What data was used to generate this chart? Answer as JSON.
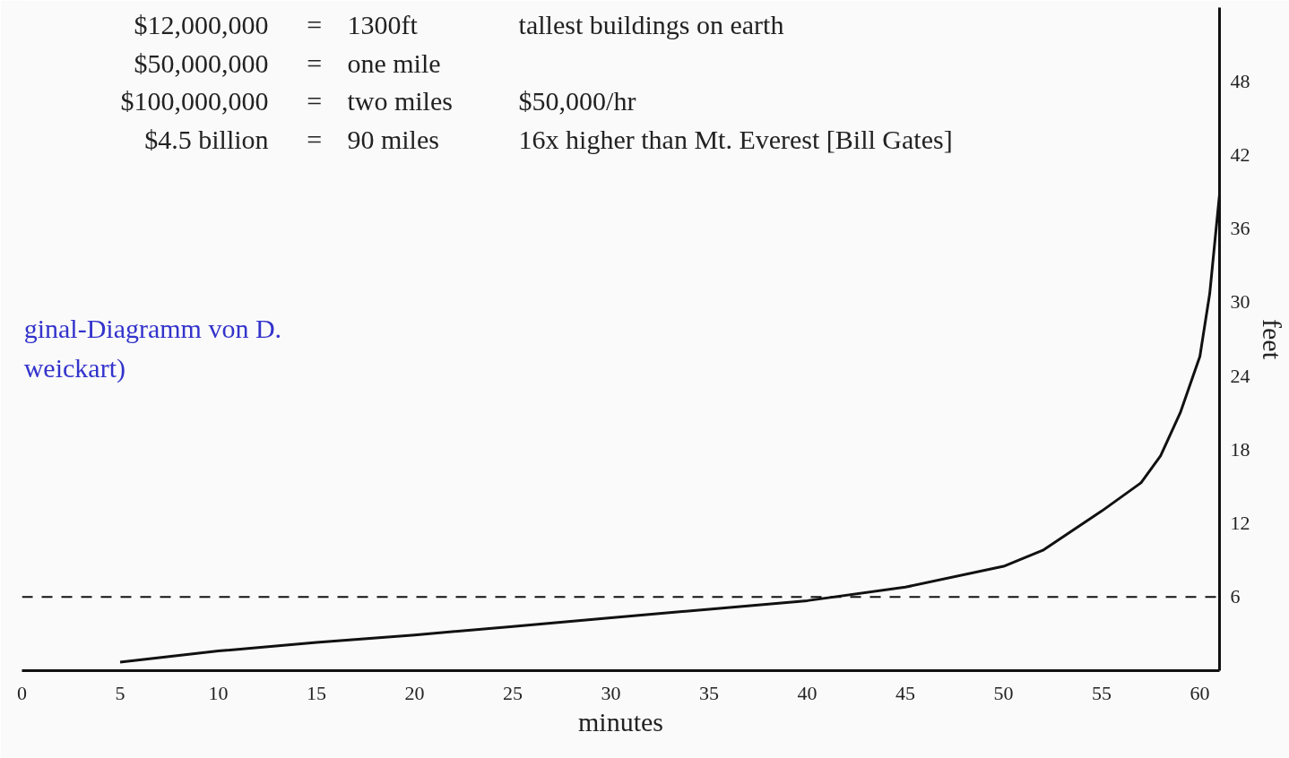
{
  "chart_data": {
    "type": "line",
    "xlabel": "minutes",
    "ylabel": "feet",
    "x": [
      5,
      10,
      15,
      20,
      25,
      30,
      35,
      40,
      45,
      50,
      52,
      55,
      57,
      58,
      59,
      60,
      60.5,
      61,
      61
    ],
    "series": [
      {
        "color": "#111111",
        "values": [
          0.7,
          1.6,
          2.3,
          2.9,
          3.6,
          4.3,
          5.0,
          5.7,
          6.8,
          8.5,
          9.8,
          13,
          15.3,
          17.5,
          21,
          25.6,
          30.7,
          38.8,
          54
        ]
      }
    ],
    "xlim": [
      0,
      61
    ],
    "ylim": [
      0,
      54
    ],
    "xticks": [
      0,
      5,
      10,
      15,
      20,
      25,
      30,
      35,
      40,
      45,
      50,
      55,
      60
    ],
    "yticks": [
      6,
      12,
      18,
      24,
      30,
      36,
      42,
      48
    ],
    "ref_lines": [
      {
        "axis": "y",
        "value": 6,
        "label": null,
        "color": "#111111",
        "line_style": "dashed"
      }
    ],
    "annotations": [
      "$12,000,000",
      "=",
      "1300ft",
      "tallest buildings on earth",
      "$50,000,000",
      "=",
      "one mile",
      "$100,000,000",
      "=",
      "two miles",
      "$50,000/hr",
      "$4.5 billion",
      "=",
      "90 miles",
      "16x higher than Mt. Everest [Bill Gates]",
      "ginal-Diagramm von D.",
      "weickart)"
    ],
    "grid": false,
    "marker": "none",
    "line_style": "solid"
  }
}
